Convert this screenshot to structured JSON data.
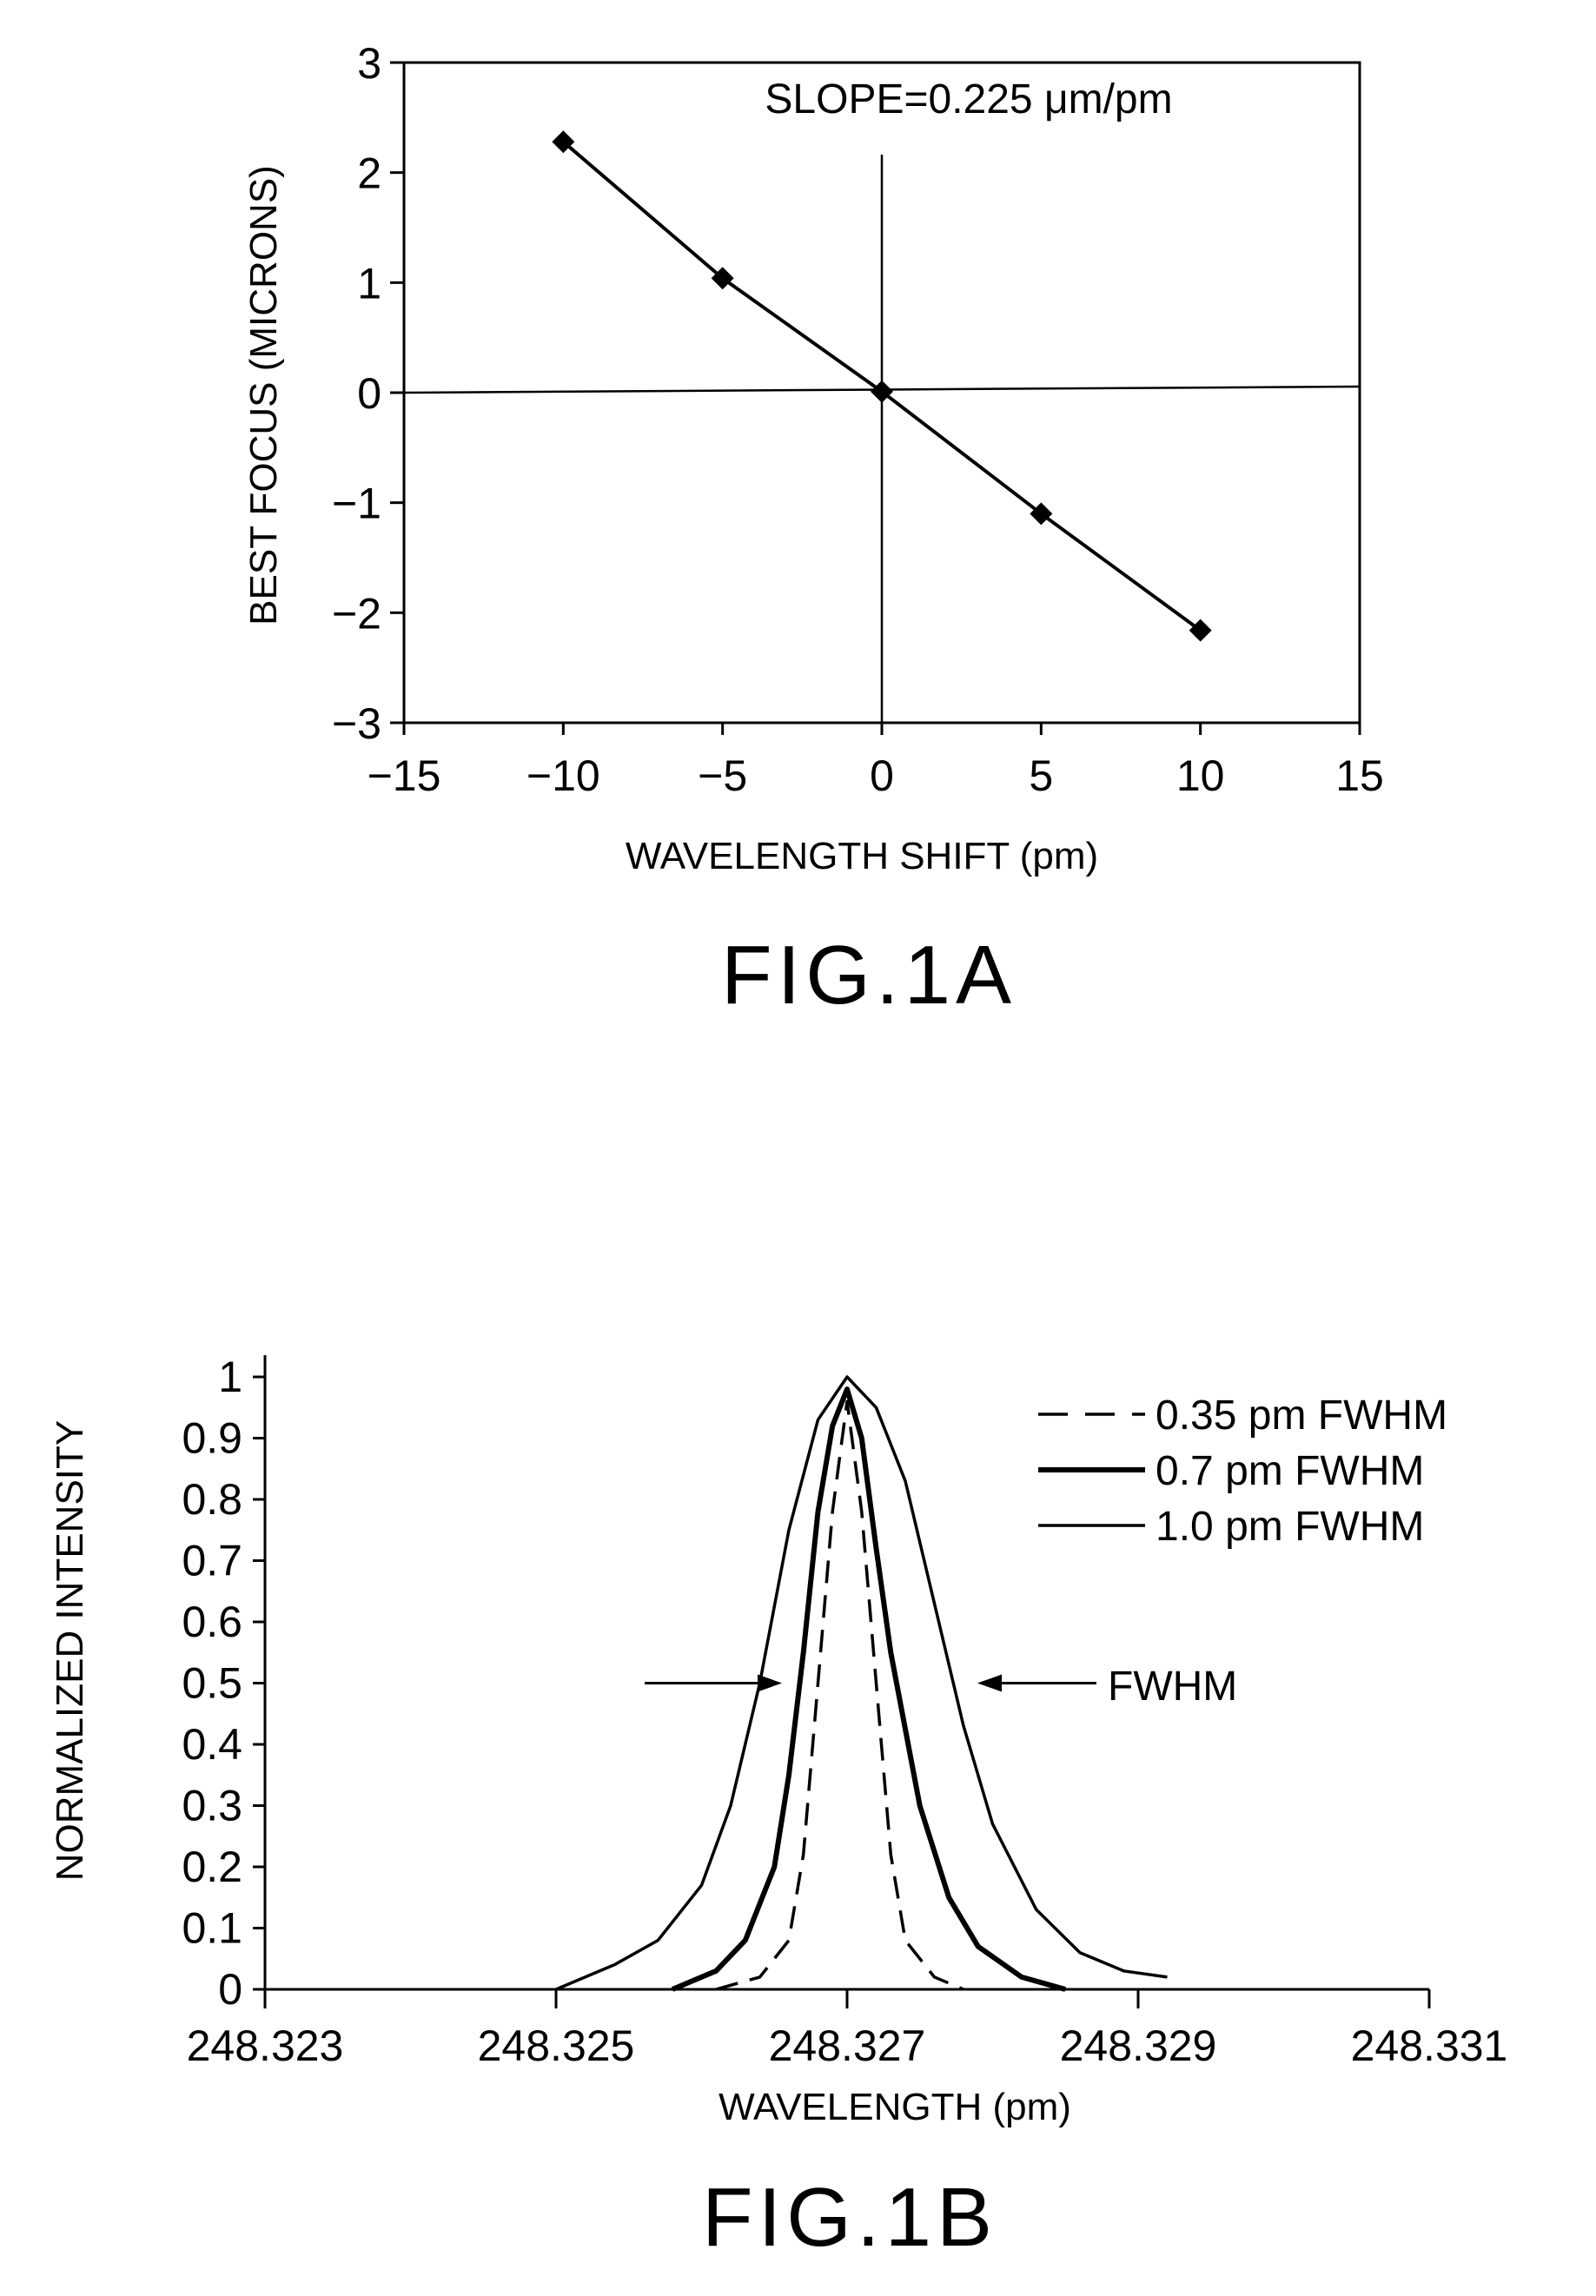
{
  "chart_data": [
    {
      "type": "line",
      "caption": "FIG.1A",
      "annotation": "SLOPE=0.225 μm/pm",
      "xlabel": "WAVELENGTH SHIFT (pm)",
      "ylabel": "BEST FOCUS (MICRONS)",
      "xlim": [
        -15,
        15
      ],
      "ylim": [
        -3,
        3
      ],
      "xticks": [
        "−15",
        "−10",
        "−5",
        "0",
        "5",
        "10",
        "15"
      ],
      "yticks": [
        "3",
        "2",
        "1",
        "0",
        "−1",
        "−2",
        "−3"
      ],
      "grid": false,
      "series": [
        {
          "marker": "diamond",
          "x": [
            -10,
            -5,
            0,
            5,
            10
          ],
          "y": [
            2.28,
            1.04,
            0.01,
            -1.1,
            -2.16
          ]
        }
      ]
    },
    {
      "type": "line",
      "caption": "FIG.1B",
      "xlabel": "WAVELENGTH (pm)",
      "ylabel": "NORMALIZED INTENSITY",
      "xlim": [
        248.323,
        248.331
      ],
      "ylim": [
        0,
        1
      ],
      "xticks": [
        "248.323",
        "248.325",
        "248.327",
        "248.329",
        "248.331"
      ],
      "yticks": [
        "1",
        "0.9",
        "0.8",
        "0.7",
        "0.6",
        "0.5",
        "0.4",
        "0.3",
        "0.2",
        "0.1",
        "0"
      ],
      "grid": false,
      "legend_position": "top-right",
      "annotation": "FWHM",
      "series": [
        {
          "name": "0.35 pm FWHM",
          "style": "dashed",
          "x": [
            248.3261,
            248.3264,
            248.3266,
            248.3267,
            248.3268,
            248.3269,
            248.327,
            248.3271,
            248.3272,
            248.3273,
            248.3274,
            248.3276,
            248.3278
          ],
          "y": [
            0.0,
            0.02,
            0.08,
            0.22,
            0.5,
            0.78,
            0.96,
            0.78,
            0.5,
            0.22,
            0.08,
            0.02,
            0.0
          ]
        },
        {
          "name": "0.7 pm FWHM",
          "style": "thick",
          "x": [
            248.3258,
            248.3261,
            248.3263,
            248.3265,
            248.3266,
            248.3267,
            248.3268,
            248.3269,
            248.327,
            248.3271,
            248.3272,
            248.3273,
            248.3275,
            248.3277,
            248.3279,
            248.3282,
            248.3285
          ],
          "y": [
            0.0,
            0.03,
            0.08,
            0.2,
            0.35,
            0.55,
            0.78,
            0.92,
            0.98,
            0.9,
            0.72,
            0.55,
            0.3,
            0.15,
            0.07,
            0.02,
            0.0
          ]
        },
        {
          "name": "1.0 pm FWHM",
          "style": "solid",
          "x": [
            248.325,
            248.3254,
            248.3257,
            248.326,
            248.3262,
            248.3264,
            248.3266,
            248.3268,
            248.327,
            248.3272,
            248.3274,
            248.3276,
            248.3278,
            248.328,
            248.3283,
            248.3286,
            248.3289,
            248.3292
          ],
          "y": [
            0.0,
            0.04,
            0.08,
            0.17,
            0.3,
            0.5,
            0.75,
            0.93,
            1.0,
            0.95,
            0.83,
            0.63,
            0.43,
            0.27,
            0.13,
            0.06,
            0.03,
            0.02
          ]
        }
      ]
    }
  ]
}
